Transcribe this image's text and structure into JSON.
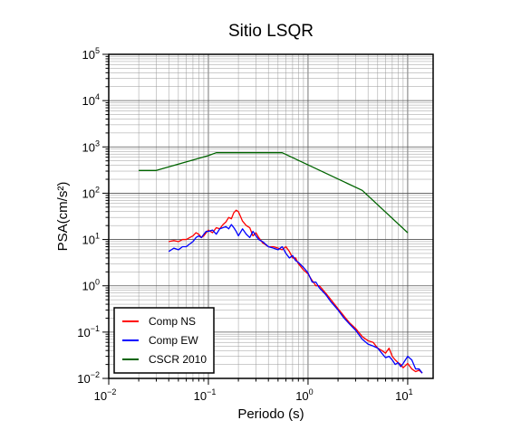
{
  "chart_data": {
    "type": "line",
    "title": "Sitio LSQR",
    "xlabel": "Periodo (s)",
    "ylabel": "PSA(cm/s²)",
    "xscale": "log",
    "yscale": "log",
    "xlim": [
      0.01,
      18
    ],
    "ylim": [
      0.01,
      100000
    ],
    "grid": true,
    "legend_position": "bottom-left",
    "x_ticks": [
      {
        "value": 0.01,
        "base": "10",
        "exp": "−2"
      },
      {
        "value": 0.1,
        "base": "10",
        "exp": "−1"
      },
      {
        "value": 1,
        "base": "10",
        "exp": "0"
      },
      {
        "value": 10,
        "base": "10",
        "exp": "1"
      }
    ],
    "y_ticks": [
      {
        "value": 0.01,
        "base": "10",
        "exp": "−2"
      },
      {
        "value": 0.1,
        "base": "10",
        "exp": "−1"
      },
      {
        "value": 1,
        "base": "10",
        "exp": "0"
      },
      {
        "value": 10,
        "base": "10",
        "exp": "1"
      },
      {
        "value": 100,
        "base": "10",
        "exp": "2"
      },
      {
        "value": 1000,
        "base": "10",
        "exp": "3"
      },
      {
        "value": 10000,
        "base": "10",
        "exp": "4"
      },
      {
        "value": 100000,
        "base": "10",
        "exp": "5"
      }
    ],
    "series": [
      {
        "name": "Comp NS",
        "color": "#ff0000",
        "x": [
          0.04,
          0.045,
          0.05,
          0.055,
          0.06,
          0.065,
          0.07,
          0.075,
          0.08,
          0.085,
          0.09,
          0.095,
          0.1,
          0.11,
          0.12,
          0.13,
          0.14,
          0.15,
          0.16,
          0.17,
          0.18,
          0.19,
          0.2,
          0.22,
          0.24,
          0.26,
          0.28,
          0.3,
          0.32,
          0.35,
          0.4,
          0.45,
          0.5,
          0.55,
          0.6,
          0.65,
          0.7,
          0.75,
          0.8,
          0.9,
          1.0,
          1.1,
          1.2,
          1.3,
          1.5,
          1.7,
          2.0,
          2.3,
          2.6,
          3.0,
          3.5,
          4.0,
          4.5,
          5.0,
          5.5,
          6.0,
          6.5,
          7.0,
          7.5,
          8.0,
          8.5,
          9.0,
          10.0,
          11.0,
          12.0,
          13.0,
          14.0
        ],
        "values": [
          9.0,
          9.5,
          9.0,
          10.0,
          10.0,
          11.0,
          12.0,
          14.0,
          13.0,
          11.0,
          12.0,
          14.0,
          16.0,
          14.0,
          18.0,
          17.0,
          21.0,
          24.0,
          30.0,
          28.0,
          38.0,
          43.0,
          40.0,
          25.0,
          20.0,
          18.0,
          12.0,
          14.0,
          11.0,
          8.5,
          7.0,
          7.0,
          6.5,
          6.0,
          7.0,
          5.5,
          4.0,
          4.0,
          3.0,
          2.2,
          1.8,
          1.3,
          1.0,
          1.0,
          0.7,
          0.5,
          0.32,
          0.22,
          0.16,
          0.12,
          0.08,
          0.065,
          0.06,
          0.045,
          0.04,
          0.035,
          0.045,
          0.03,
          0.025,
          0.022,
          0.02,
          0.017,
          0.021,
          0.016,
          0.014,
          0.015,
          0.013
        ]
      },
      {
        "name": "Comp EW",
        "color": "#0000ff",
        "x": [
          0.04,
          0.045,
          0.05,
          0.055,
          0.06,
          0.065,
          0.07,
          0.075,
          0.08,
          0.085,
          0.09,
          0.095,
          0.1,
          0.11,
          0.12,
          0.13,
          0.14,
          0.15,
          0.16,
          0.17,
          0.18,
          0.19,
          0.2,
          0.22,
          0.24,
          0.26,
          0.28,
          0.3,
          0.32,
          0.35,
          0.4,
          0.45,
          0.5,
          0.55,
          0.6,
          0.65,
          0.7,
          0.75,
          0.8,
          0.9,
          1.0,
          1.1,
          1.2,
          1.3,
          1.5,
          1.7,
          2.0,
          2.3,
          2.6,
          3.0,
          3.5,
          4.0,
          4.5,
          5.0,
          5.5,
          6.0,
          6.5,
          7.0,
          7.5,
          8.0,
          8.5,
          9.0,
          10.0,
          11.0,
          12.0,
          13.0,
          14.0
        ],
        "values": [
          5.5,
          6.5,
          6.0,
          7.0,
          7.0,
          8.0,
          9.0,
          11.0,
          12.0,
          11.0,
          13.0,
          15.0,
          15.0,
          16.0,
          13.0,
          17.0,
          18.0,
          19.0,
          17.0,
          21.0,
          18.0,
          15.0,
          12.0,
          17.0,
          13.0,
          11.0,
          15.0,
          12.0,
          10.0,
          9.0,
          7.0,
          6.5,
          6.0,
          7.0,
          5.0,
          4.0,
          4.5,
          3.5,
          3.2,
          2.5,
          1.9,
          1.2,
          1.2,
          0.9,
          0.65,
          0.45,
          0.3,
          0.2,
          0.15,
          0.11,
          0.07,
          0.055,
          0.05,
          0.045,
          0.035,
          0.028,
          0.03,
          0.025,
          0.02,
          0.022,
          0.018,
          0.021,
          0.03,
          0.025,
          0.016,
          0.016,
          0.013
        ]
      },
      {
        "name": "CSCR 2010",
        "color": "#006400",
        "x": [
          0.02,
          0.03,
          0.1,
          0.12,
          0.55,
          3.5,
          10.0
        ],
        "values": [
          310,
          310,
          650,
          750,
          750,
          115,
          14
        ]
      }
    ]
  }
}
